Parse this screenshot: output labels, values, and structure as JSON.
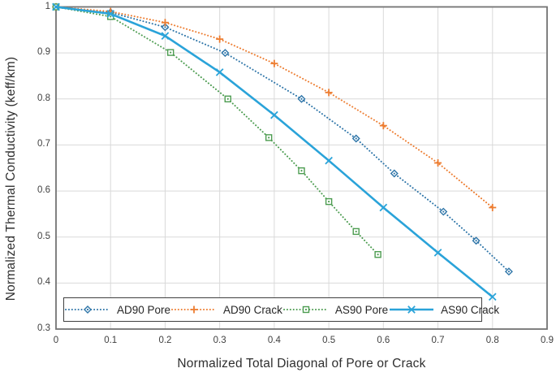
{
  "chart_data": {
    "type": "line",
    "title": "",
    "xlabel": "Normalized Total Diagonal of Pore or Crack",
    "ylabel": "Normalized Thermal Conductivity (keff/km)",
    "xlim": [
      0,
      0.9
    ],
    "ylim": [
      0.3,
      1.0
    ],
    "xtick_labels": [
      "0",
      "0.1",
      "0.2",
      "0.3",
      "0.4",
      "0.5",
      "0.6",
      "0.7",
      "0.8",
      "0.9"
    ],
    "ytick_labels": [
      "1",
      "0.9",
      "0.8",
      "0.7",
      "0.6",
      "0.5",
      "0.4",
      "0.3"
    ],
    "xticks": [
      0,
      0.1,
      0.2,
      0.3,
      0.4,
      0.5,
      0.6,
      0.7,
      0.8,
      0.9
    ],
    "yticks": [
      1.0,
      0.9,
      0.8,
      0.7,
      0.6,
      0.5,
      0.4,
      0.3
    ],
    "grid": true,
    "gridline_color": "#d9d9d9",
    "border_color": "#737373",
    "legend_position": "bottom-inside",
    "series": [
      {
        "name": "AD90 Pore",
        "color": "#2e75a8",
        "line": "dotted",
        "marker": "diamond",
        "x": [
          0,
          0.1,
          0.2,
          0.31,
          0.45,
          0.55,
          0.62,
          0.71,
          0.77,
          0.83
        ],
        "y": [
          1.0,
          0.988,
          0.956,
          0.9,
          0.8,
          0.714,
          0.638,
          0.555,
          0.492,
          0.425
        ]
      },
      {
        "name": "AD90 Crack",
        "color": "#ed7d31",
        "line": "dotted",
        "marker": "plus",
        "x": [
          0,
          0.1,
          0.2,
          0.3,
          0.4,
          0.5,
          0.6,
          0.7,
          0.8
        ],
        "y": [
          1.0,
          0.99,
          0.966,
          0.93,
          0.877,
          0.814,
          0.742,
          0.661,
          0.564
        ]
      },
      {
        "name": "AS90 Pore",
        "color": "#4c9c50",
        "line": "dotted",
        "marker": "square",
        "x": [
          0,
          0.1,
          0.21,
          0.315,
          0.39,
          0.45,
          0.5,
          0.55,
          0.59
        ],
        "y": [
          1.0,
          0.979,
          0.901,
          0.8,
          0.716,
          0.644,
          0.577,
          0.512,
          0.462
        ]
      },
      {
        "name": "AS90 Crack",
        "color": "#2aa3d9",
        "line": "solid",
        "marker": "x",
        "x": [
          0,
          0.1,
          0.2,
          0.3,
          0.4,
          0.5,
          0.6,
          0.7,
          0.8
        ],
        "y": [
          1.0,
          0.985,
          0.937,
          0.858,
          0.765,
          0.666,
          0.564,
          0.466,
          0.37
        ]
      }
    ]
  }
}
